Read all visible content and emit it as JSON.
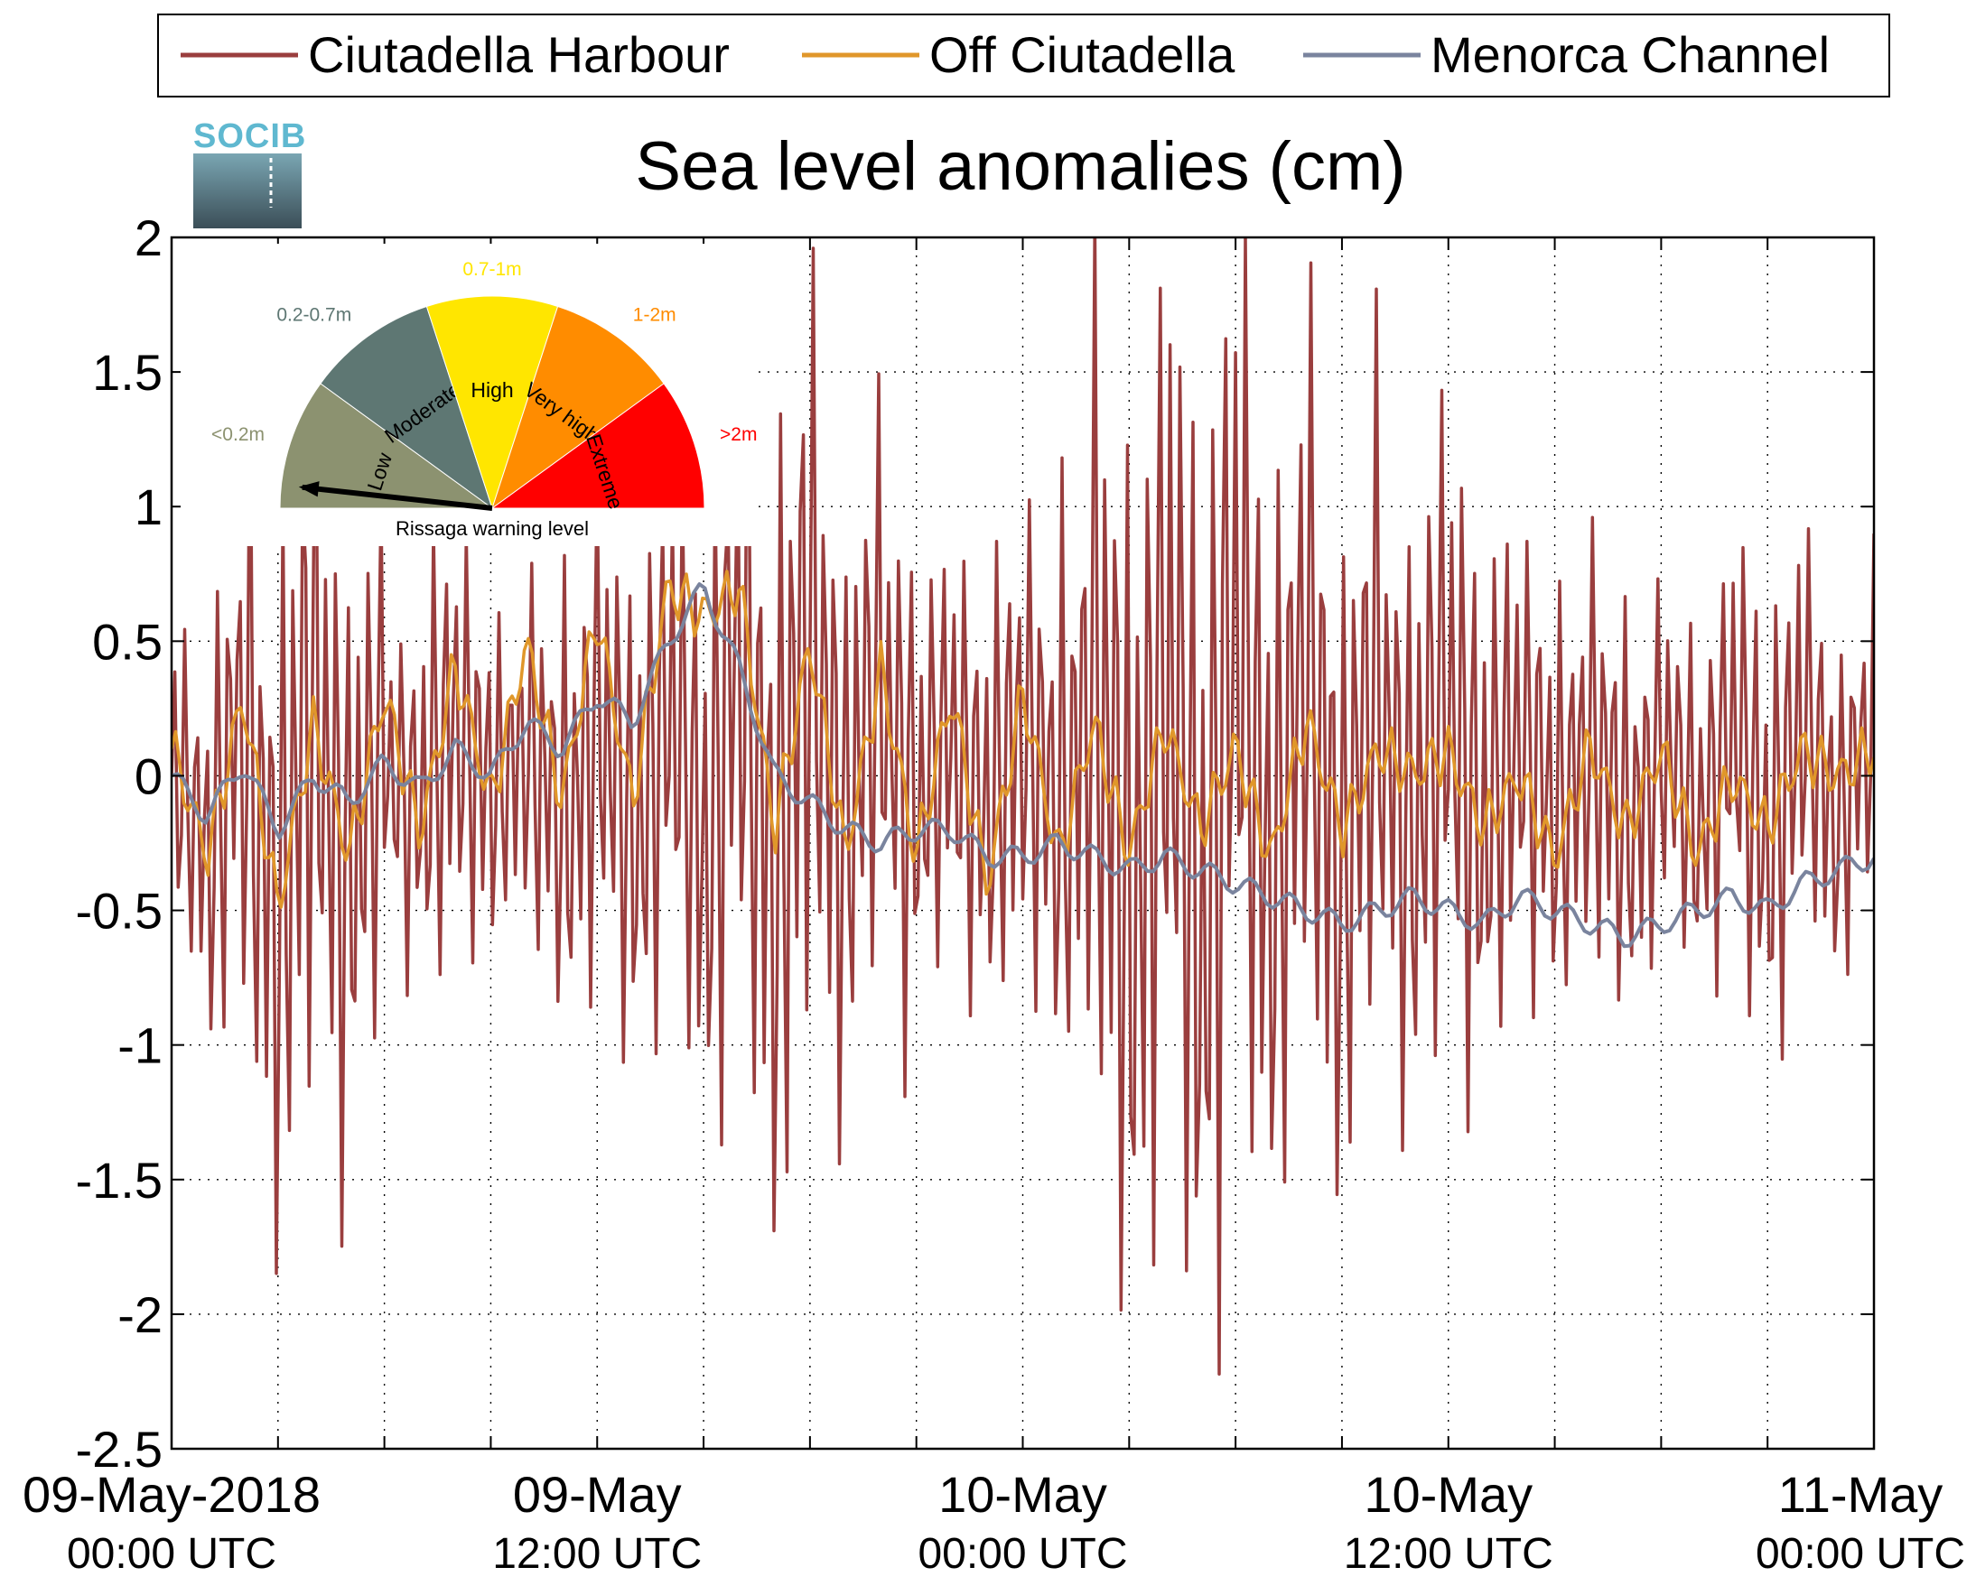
{
  "chart_data": {
    "type": "line",
    "title": "Sea level anomalies (cm)",
    "legend": {
      "placement": "top",
      "entries": [
        "Ciutadella Harbour",
        "Off Ciutadella",
        "Menorca Channel"
      ]
    },
    "ylim": [
      -2.5,
      2
    ],
    "yticks": [
      2,
      1.5,
      1,
      0.5,
      0,
      -0.5,
      -1,
      -1.5,
      -2,
      -2.5
    ],
    "ytick_labels": [
      "2",
      "1.5",
      "1",
      "0.5",
      "0",
      "-0.5",
      "-1",
      "-1.5",
      "-2",
      "-2.5"
    ],
    "xlim_hours": [
      0,
      48
    ],
    "xtick_labels": [
      {
        "hour": 0,
        "line1": "09-May-2018",
        "line2": "00:00 UTC"
      },
      {
        "hour": 12,
        "line1": "09-May",
        "line2": "12:00 UTC"
      },
      {
        "hour": 24,
        "line1": "10-May",
        "line2": "00:00 UTC"
      },
      {
        "hour": 36,
        "line1": "10-May",
        "line2": "12:00 UTC"
      },
      {
        "hour": 48,
        "line1": "11-May",
        "line2": "00:00 UTC"
      }
    ],
    "grid": true,
    "series": [
      {
        "name": "Ciutadella Harbour",
        "color": "#9a3e3e",
        "values": [
          0.0,
          -0.9,
          0.7,
          -1.8,
          1.1,
          -1.5,
          0.4,
          -0.6,
          0.9,
          -0.4,
          0.5,
          -0.8,
          0.8,
          -0.9,
          1.0,
          -1.0,
          1.6,
          -1.3,
          1.9,
          -0.7,
          1.3,
          -0.6,
          0.7,
          -0.7,
          0.9,
          -0.8,
          1.4,
          -2.1,
          1.6,
          -2.1,
          1.9,
          -1.3,
          1.5,
          -1.3,
          1.2,
          -1.0,
          1.3,
          -1.0,
          0.8,
          -0.7,
          0.6,
          -0.8,
          0.4,
          -0.6,
          0.6,
          -0.9,
          0.7,
          -0.5,
          0.5
        ]
      },
      {
        "name": "Off Ciutadella",
        "color": "#e0972a",
        "values": [
          0.1,
          -0.3,
          0.3,
          -0.5,
          0.2,
          -0.3,
          0.3,
          -0.2,
          0.4,
          -0.1,
          0.5,
          -0.1,
          0.6,
          -0.1,
          0.7,
          0.6,
          0.7,
          -0.2,
          0.5,
          -0.3,
          0.4,
          -0.3,
          0.3,
          -0.4,
          0.3,
          -0.3,
          0.2,
          -0.3,
          0.2,
          -0.2,
          0.1,
          -0.3,
          0.2,
          -0.2,
          0.1,
          0.0,
          0.1,
          -0.2,
          0.0,
          -0.3,
          0.1,
          -0.2,
          0.1,
          -0.3,
          0.0,
          -0.2,
          0.1,
          0.0,
          0.1
        ]
      },
      {
        "name": "Menorca Channel",
        "color": "#7a849e",
        "values": [
          0.0,
          -0.15,
          0.05,
          -0.2,
          0.0,
          -0.1,
          0.05,
          -0.05,
          0.1,
          0.0,
          0.2,
          0.1,
          0.3,
          0.2,
          0.5,
          0.7,
          0.4,
          0.0,
          -0.1,
          -0.2,
          -0.25,
          -0.2,
          -0.2,
          -0.3,
          -0.3,
          -0.25,
          -0.3,
          -0.35,
          -0.3,
          -0.35,
          -0.4,
          -0.45,
          -0.5,
          -0.55,
          -0.5,
          -0.45,
          -0.5,
          -0.55,
          -0.45,
          -0.5,
          -0.55,
          -0.6,
          -0.55,
          -0.5,
          -0.45,
          -0.5,
          -0.4,
          -0.35,
          -0.3
        ]
      }
    ]
  },
  "logo": {
    "text": "SOCIB"
  },
  "inset": {
    "title": "Rissaga warning level",
    "pointer_category": "Low",
    "segments": [
      {
        "label": "Low",
        "range": "<0.2m",
        "color": "#8c9270"
      },
      {
        "label": "Moderate",
        "range": "0.2-0.7m",
        "color": "#5e7773"
      },
      {
        "label": "High",
        "range": "0.7-1m",
        "color": "#ffe600"
      },
      {
        "label": "Very high",
        "range": "1-2m",
        "color": "#ff8c00"
      },
      {
        "label": "Extreme",
        "range": ">2m",
        "color": "#ff0000"
      }
    ]
  }
}
